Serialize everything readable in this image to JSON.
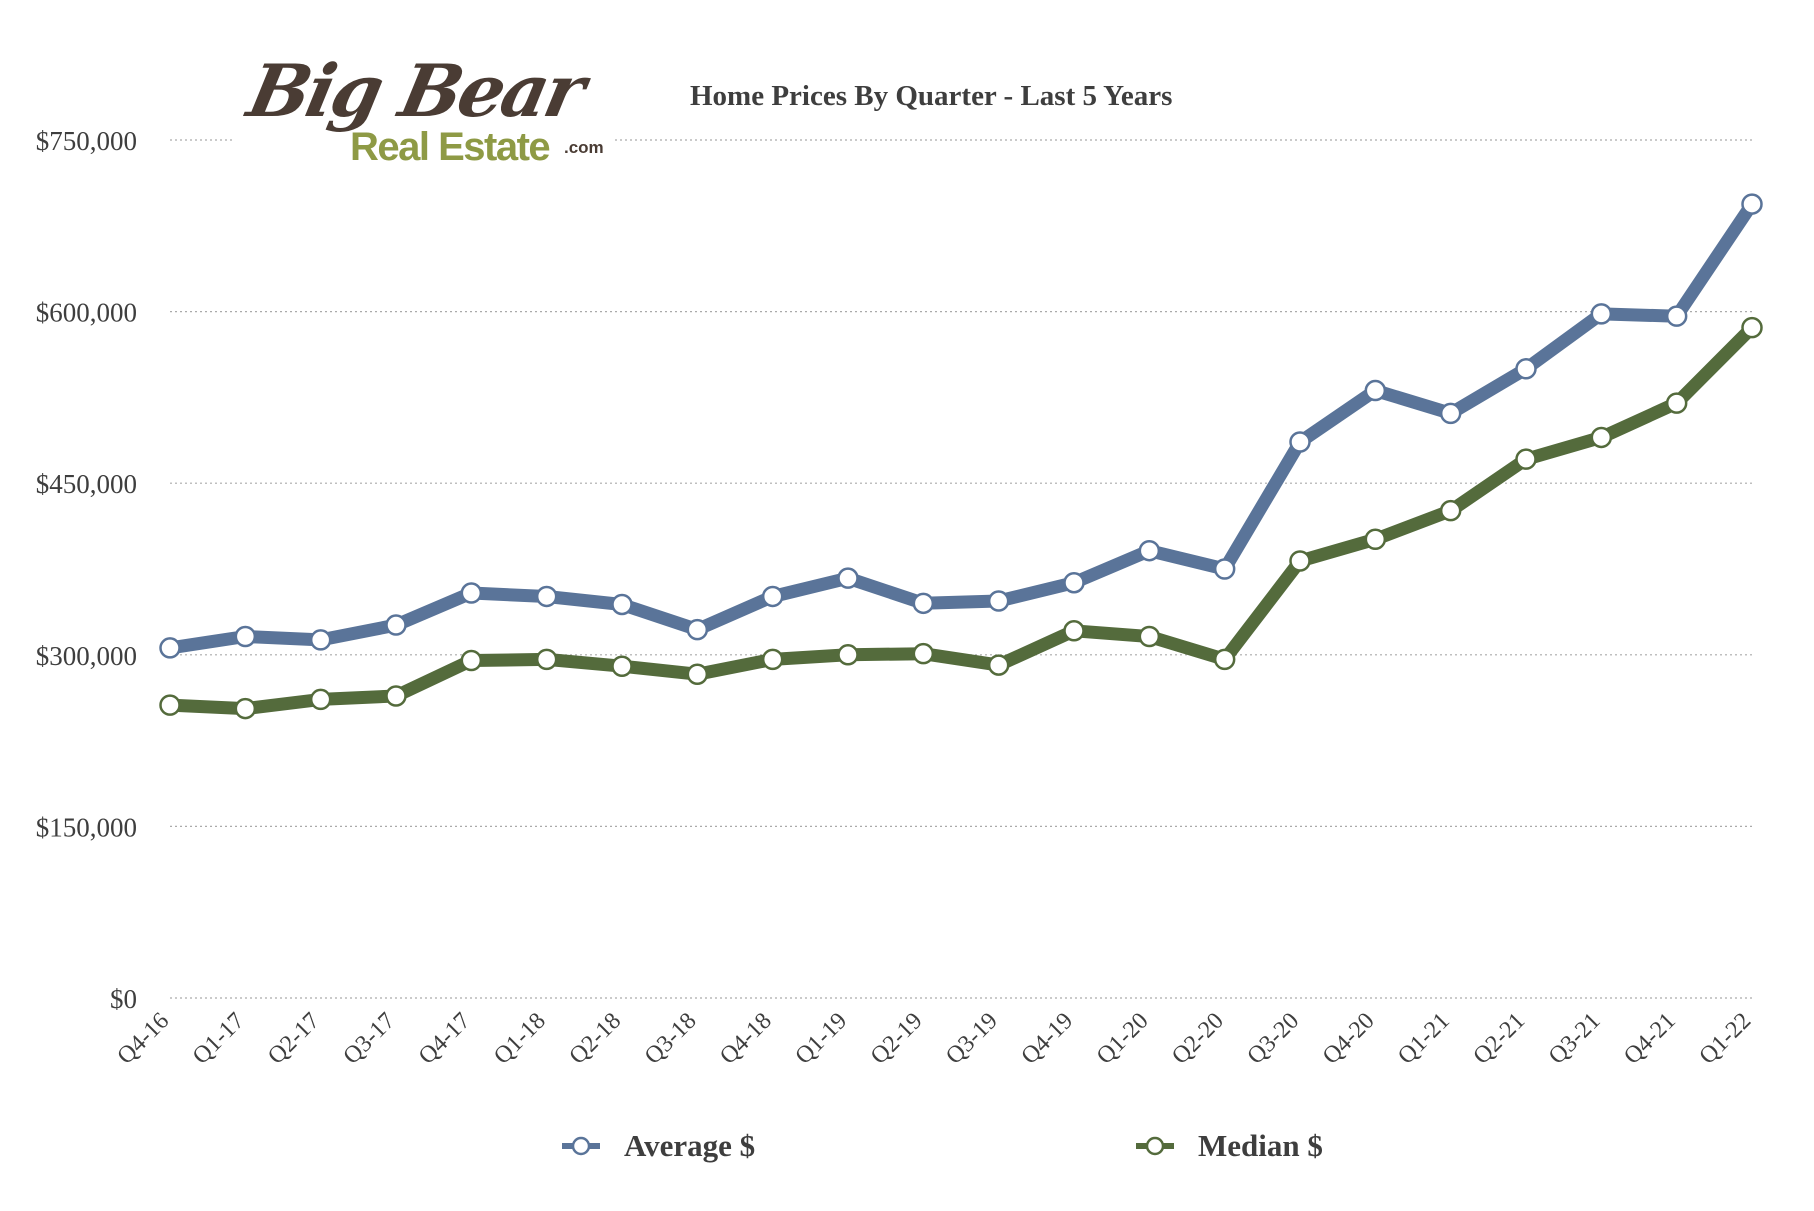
{
  "title": "Home Prices By Quarter - Last 5 Years",
  "logo": {
    "line1": "Big Bear",
    "line2": "Real Estate",
    "suffix": ".com"
  },
  "colors": {
    "average": "#5a7499",
    "median": "#546b3c",
    "grid": "#aaaaaa",
    "text": "#3e3e3e"
  },
  "chart_data": {
    "type": "line",
    "title": "Home Prices By Quarter - Last 5 Years",
    "xlabel": "",
    "ylabel": "",
    "ylim": [
      0,
      750000
    ],
    "yticks": [
      0,
      150000,
      300000,
      450000,
      600000,
      750000
    ],
    "ytick_labels": [
      "$0",
      "$150,000",
      "$300,000",
      "$450,000",
      "$600,000",
      "$750,000"
    ],
    "categories": [
      "Q4-16",
      "Q1-17",
      "Q2-17",
      "Q3-17",
      "Q4-17",
      "Q1-18",
      "Q2-18",
      "Q3-18",
      "Q4-18",
      "Q1-19",
      "Q2-19",
      "Q3-19",
      "Q4-19",
      "Q1-20",
      "Q2-20",
      "Q3-20",
      "Q4-20",
      "Q1-21",
      "Q2-21",
      "Q3-21",
      "Q4-21",
      "Q1-22"
    ],
    "grid": true,
    "legend_position": "bottom",
    "series": [
      {
        "name": "Average $",
        "color": "#5a7499",
        "values": [
          306000,
          316000,
          313000,
          326000,
          354000,
          351000,
          344000,
          322000,
          351000,
          367000,
          345000,
          347000,
          363000,
          391000,
          375000,
          486000,
          531000,
          511000,
          550000,
          598000,
          596000,
          694000
        ]
      },
      {
        "name": "Median $",
        "color": "#546b3c",
        "values": [
          256000,
          253000,
          261000,
          264000,
          295000,
          296000,
          290000,
          283000,
          296000,
          300000,
          301000,
          291000,
          321000,
          316000,
          296000,
          382000,
          401000,
          426000,
          471000,
          490000,
          520000,
          586000
        ]
      }
    ]
  }
}
